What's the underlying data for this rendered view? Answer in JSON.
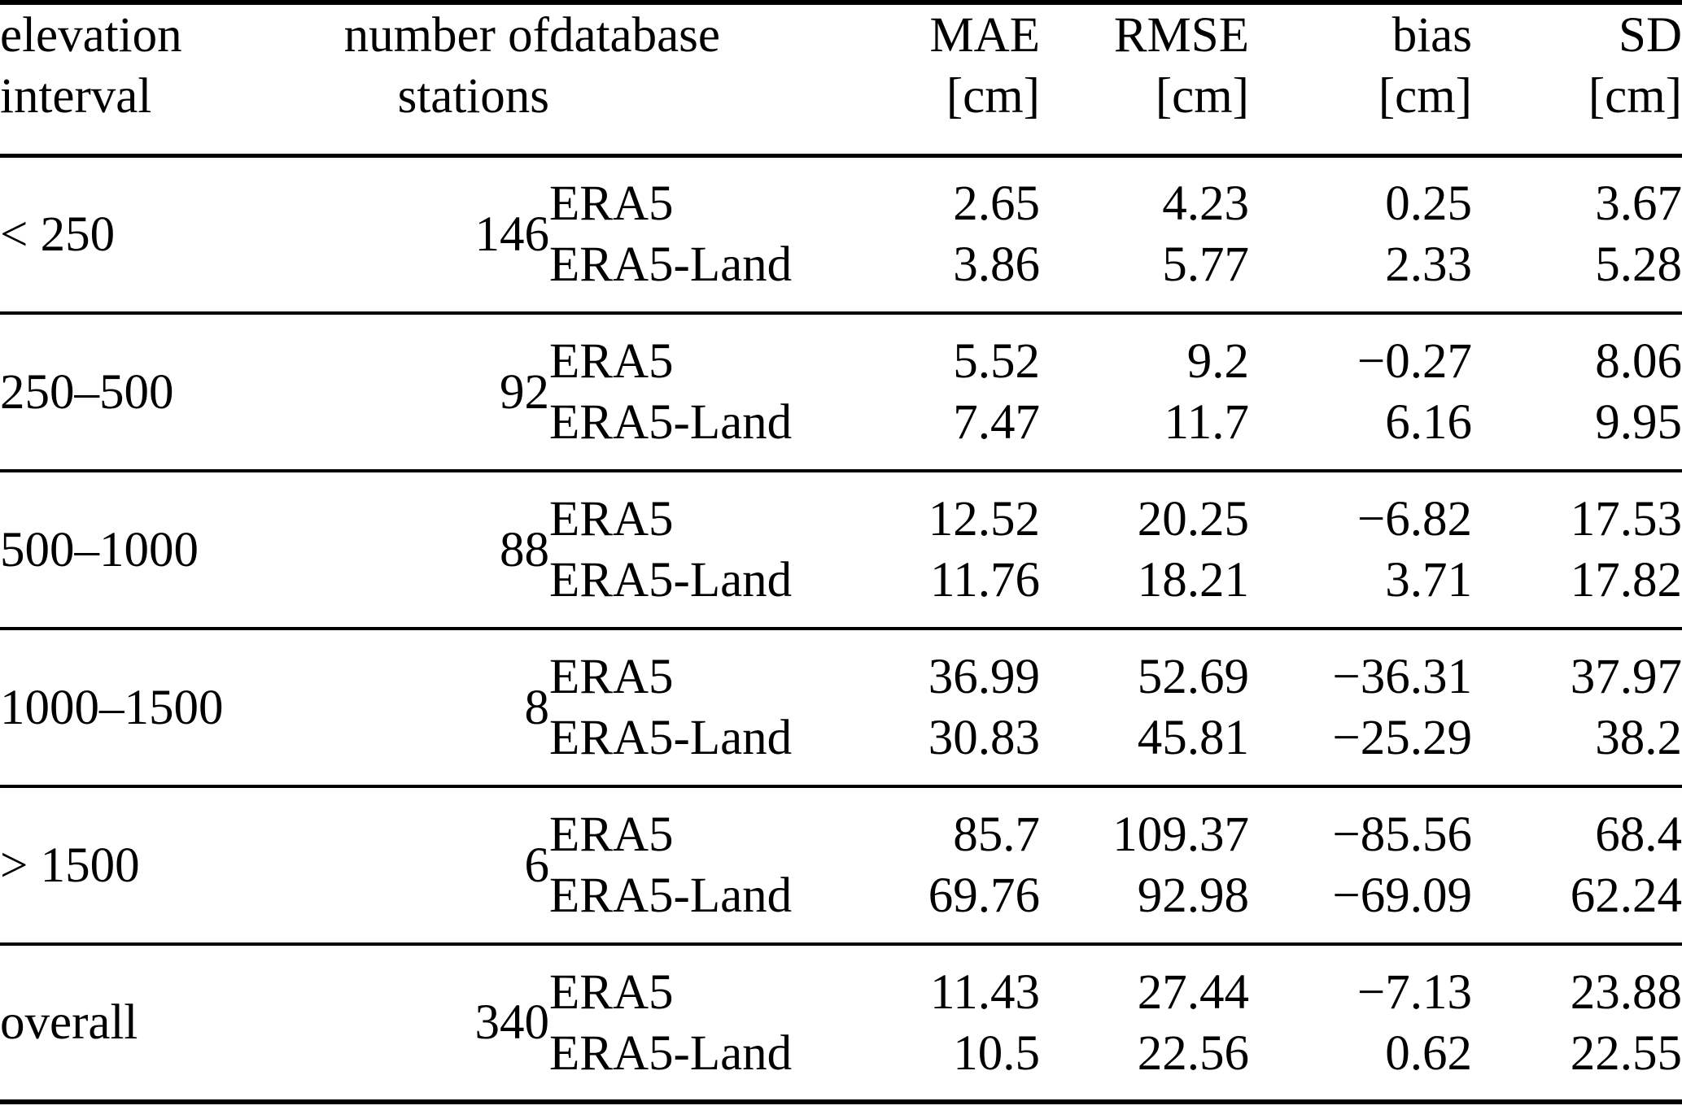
{
  "page": {
    "background_color": "#ffffff",
    "text_color": "#000000"
  },
  "table": {
    "headers": {
      "elevation_interval": {
        "line1": "elevation",
        "line2": "interval"
      },
      "number_of_stations": {
        "line1": "number of",
        "line2": "stations"
      },
      "database": {
        "line1": "database",
        "line2": ""
      },
      "mae": {
        "line1": "MAE",
        "line2": "[cm]"
      },
      "rmse": {
        "line1": "RMSE",
        "line2": "[cm]"
      },
      "bias": {
        "line1": "bias",
        "line2": "[cm]"
      },
      "sd": {
        "line1": "SD",
        "line2": "[cm]"
      }
    },
    "groups": [
      {
        "interval": "< 250",
        "stations": "146",
        "rows": [
          {
            "database": "ERA5",
            "mae": "2.65",
            "rmse": "4.23",
            "bias": "0.25",
            "sd": "3.67"
          },
          {
            "database": "ERA5-Land",
            "mae": "3.86",
            "rmse": "5.77",
            "bias": "2.33",
            "sd": "5.28"
          }
        ]
      },
      {
        "interval": "250–500",
        "stations": "92",
        "rows": [
          {
            "database": "ERA5",
            "mae": "5.52",
            "rmse": "9.2",
            "bias": "−0.27",
            "sd": "8.06"
          },
          {
            "database": "ERA5-Land",
            "mae": "7.47",
            "rmse": "11.7",
            "bias": "6.16",
            "sd": "9.95"
          }
        ]
      },
      {
        "interval": "500–1000",
        "stations": "88",
        "rows": [
          {
            "database": "ERA5",
            "mae": "12.52",
            "rmse": "20.25",
            "bias": "−6.82",
            "sd": "17.53"
          },
          {
            "database": "ERA5-Land",
            "mae": "11.76",
            "rmse": "18.21",
            "bias": "3.71",
            "sd": "17.82"
          }
        ]
      },
      {
        "interval": "1000–1500",
        "stations": "8",
        "rows": [
          {
            "database": "ERA5",
            "mae": "36.99",
            "rmse": "52.69",
            "bias": "−36.31",
            "sd": "37.97"
          },
          {
            "database": "ERA5-Land",
            "mae": "30.83",
            "rmse": "45.81",
            "bias": "−25.29",
            "sd": "38.2"
          }
        ]
      },
      {
        "interval": "> 1500",
        "stations": "6",
        "rows": [
          {
            "database": "ERA5",
            "mae": "85.7",
            "rmse": "109.37",
            "bias": "−85.56",
            "sd": "68.4"
          },
          {
            "database": "ERA5-Land",
            "mae": "69.76",
            "rmse": "92.98",
            "bias": "−69.09",
            "sd": "62.24"
          }
        ]
      },
      {
        "interval": "overall",
        "stations": "340",
        "rows": [
          {
            "database": "ERA5",
            "mae": "11.43",
            "rmse": "27.44",
            "bias": "−7.13",
            "sd": "23.88"
          },
          {
            "database": "ERA5-Land",
            "mae": "10.5",
            "rmse": "22.56",
            "bias": "0.62",
            "sd": "22.55"
          }
        ]
      }
    ]
  }
}
